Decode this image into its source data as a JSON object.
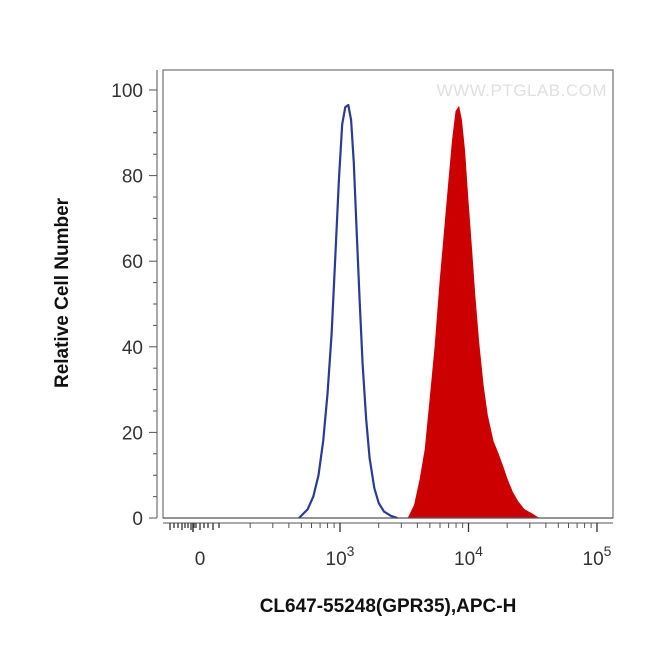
{
  "chart_data": {
    "type": "area",
    "title": "",
    "xlabel": "CL647-55248(GPR35),APC-H",
    "ylabel": "Relative Cell Number",
    "watermark": "WWW.PTGLAB.COM",
    "ylim": [
      0,
      100
    ],
    "xscale": "biexponential",
    "y_ticks": [
      "0",
      "20",
      "40",
      "60",
      "80",
      "100"
    ],
    "x_ticks": [
      {
        "base": "0",
        "exp": ""
      },
      {
        "base": "10",
        "exp": "3"
      },
      {
        "base": "10",
        "exp": "4"
      },
      {
        "base": "10",
        "exp": "5"
      }
    ],
    "grid": false,
    "series": [
      {
        "style": "outline",
        "color": "#2a3a9a",
        "x": [
          480,
          560,
          620,
          680,
          740,
          800,
          860,
          920,
          980,
          1040,
          1100,
          1160,
          1220,
          1280,
          1340,
          1420,
          1500,
          1600,
          1700,
          1850,
          2000,
          2200,
          2500,
          2800
        ],
        "y": [
          0,
          2,
          5,
          10,
          18,
          29,
          43,
          61,
          79,
          92,
          96,
          96.5,
          93,
          83,
          69,
          51,
          36,
          23,
          14,
          7,
          3.5,
          1.5,
          0.5,
          0
        ]
      },
      {
        "style": "filled",
        "color": "#cc0000",
        "x": [
          3400,
          3800,
          4200,
          4600,
          5000,
          5500,
          6000,
          6500,
          7000,
          7500,
          8000,
          8400,
          8800,
          9300,
          9800,
          10500,
          11200,
          12000,
          13000,
          14000,
          15500,
          17000,
          18500,
          20000,
          22000,
          24000,
          27000,
          31000,
          35000
        ],
        "y": [
          0,
          3,
          9,
          16,
          27,
          40,
          55,
          67,
          78,
          88,
          95,
          96,
          93,
          86,
          76,
          64,
          52,
          41,
          31,
          24,
          18,
          15,
          12,
          9,
          6,
          4,
          2,
          1,
          0
        ]
      }
    ]
  }
}
